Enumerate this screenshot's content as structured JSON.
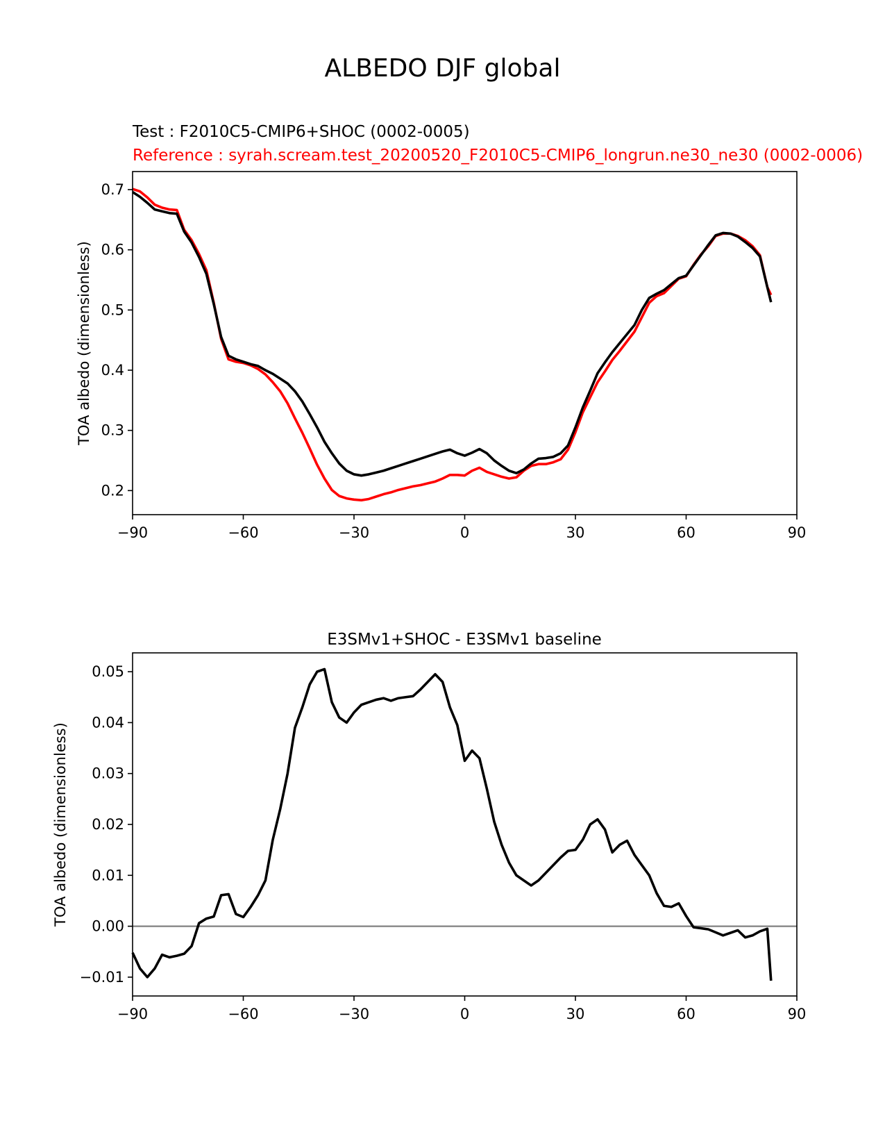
{
  "figure_title": "ALBEDO DJF global",
  "top_panel": {
    "test_label": "Test : F2010C5-CMIP6+SHOC (0002-0005)",
    "reference_label": "Reference : syrah.scream.test_20200520_F2010C5-CMIP6_longrun.ne30_ne30 (0002-0006)"
  },
  "bottom_panel": {
    "title": "E3SMv1+SHOC - E3SMv1 baseline"
  },
  "colors": {
    "test": "#000000",
    "reference": "#ff0000",
    "diff": "#000000",
    "zero_line": "#808080"
  },
  "chart_data": [
    {
      "type": "line",
      "title": "Test : F2010C5-CMIP6+SHOC (0002-0005)",
      "xlabel": "",
      "ylabel": "TOA albedo (dimensionless)",
      "xlim": [
        -90,
        90
      ],
      "ylim": [
        0.16,
        0.73
      ],
      "xticks": [
        -90,
        -60,
        -30,
        0,
        30,
        60,
        90
      ],
      "xtick_labels": [
        "−90",
        "−60",
        "−30",
        "0",
        "30",
        "60",
        "90"
      ],
      "yticks": [
        0.2,
        0.3,
        0.4,
        0.5,
        0.6,
        0.7
      ],
      "ytick_labels": [
        "0.2",
        "0.3",
        "0.4",
        "0.5",
        "0.6",
        "0.7"
      ],
      "grid": false,
      "series": [
        {
          "name": "reference",
          "color": "#ff0000",
          "x": [
            -90,
            -88,
            -86,
            -84,
            -82,
            -80,
            -78,
            -76,
            -74,
            -72,
            -70,
            -68,
            -66,
            -64,
            -62,
            -60,
            -58,
            -56,
            -54,
            -52,
            -50,
            -48,
            -46,
            -44,
            -42,
            -40,
            -38,
            -36,
            -34,
            -32,
            -30,
            -28,
            -26,
            -24,
            -22,
            -20,
            -18,
            -16,
            -14,
            -12,
            -10,
            -8,
            -6,
            -4,
            -2,
            0,
            2,
            4,
            6,
            8,
            10,
            12,
            14,
            16,
            18,
            20,
            22,
            24,
            26,
            28,
            30,
            32,
            34,
            36,
            38,
            40,
            42,
            44,
            46,
            48,
            50,
            52,
            54,
            56,
            58,
            60,
            62,
            64,
            66,
            68,
            70,
            72,
            74,
            76,
            78,
            80,
            82,
            83
          ],
          "values": [
            0.701,
            0.697,
            0.687,
            0.675,
            0.67,
            0.667,
            0.666,
            0.633,
            0.616,
            0.593,
            0.566,
            0.512,
            0.452,
            0.418,
            0.414,
            0.412,
            0.408,
            0.402,
            0.393,
            0.38,
            0.365,
            0.345,
            0.32,
            0.296,
            0.27,
            0.243,
            0.22,
            0.201,
            0.191,
            0.187,
            0.185,
            0.184,
            0.186,
            0.19,
            0.194,
            0.197,
            0.201,
            0.204,
            0.207,
            0.209,
            0.212,
            0.215,
            0.22,
            0.226,
            0.226,
            0.225,
            0.233,
            0.238,
            0.231,
            0.227,
            0.223,
            0.22,
            0.222,
            0.233,
            0.241,
            0.244,
            0.244,
            0.247,
            0.252,
            0.268,
            0.297,
            0.33,
            0.355,
            0.38,
            0.398,
            0.417,
            0.432,
            0.448,
            0.464,
            0.488,
            0.512,
            0.523,
            0.528,
            0.54,
            0.552,
            0.556,
            0.575,
            0.592,
            0.606,
            0.623,
            0.627,
            0.627,
            0.623,
            0.616,
            0.606,
            0.591,
            0.538,
            0.525
          ]
        },
        {
          "name": "test",
          "color": "#000000",
          "x": [
            -90,
            -88,
            -86,
            -84,
            -82,
            -80,
            -78,
            -76,
            -74,
            -72,
            -70,
            -68,
            -66,
            -64,
            -62,
            -60,
            -58,
            -56,
            -54,
            -52,
            -50,
            -48,
            -46,
            -44,
            -42,
            -40,
            -38,
            -36,
            -34,
            -32,
            -30,
            -28,
            -26,
            -24,
            -22,
            -20,
            -18,
            -16,
            -14,
            -12,
            -10,
            -8,
            -6,
            -4,
            -2,
            0,
            2,
            4,
            6,
            8,
            10,
            12,
            14,
            16,
            18,
            20,
            22,
            24,
            26,
            28,
            30,
            32,
            34,
            36,
            38,
            40,
            42,
            44,
            46,
            48,
            50,
            52,
            54,
            56,
            58,
            60,
            62,
            64,
            66,
            68,
            70,
            72,
            74,
            76,
            78,
            80,
            82,
            83
          ],
          "values": [
            0.696,
            0.688,
            0.678,
            0.667,
            0.664,
            0.661,
            0.66,
            0.63,
            0.612,
            0.588,
            0.56,
            0.51,
            0.455,
            0.424,
            0.418,
            0.414,
            0.41,
            0.407,
            0.4,
            0.394,
            0.386,
            0.378,
            0.365,
            0.348,
            0.327,
            0.305,
            0.281,
            0.262,
            0.245,
            0.233,
            0.227,
            0.225,
            0.227,
            0.23,
            0.233,
            0.237,
            0.241,
            0.245,
            0.249,
            0.253,
            0.257,
            0.261,
            0.265,
            0.268,
            0.262,
            0.258,
            0.263,
            0.269,
            0.262,
            0.25,
            0.241,
            0.233,
            0.229,
            0.235,
            0.245,
            0.253,
            0.254,
            0.256,
            0.262,
            0.275,
            0.305,
            0.338,
            0.366,
            0.395,
            0.413,
            0.43,
            0.445,
            0.46,
            0.475,
            0.5,
            0.52,
            0.527,
            0.533,
            0.543,
            0.553,
            0.557,
            0.574,
            0.591,
            0.608,
            0.624,
            0.628,
            0.627,
            0.622,
            0.613,
            0.603,
            0.589,
            0.538,
            0.513
          ]
        }
      ]
    },
    {
      "type": "line",
      "title": "E3SMv1+SHOC - E3SMv1 baseline",
      "xlabel": "",
      "ylabel": "TOA albedo (dimensionless)",
      "xlim": [
        -90,
        90
      ],
      "ylim": [
        -0.0137,
        0.0537
      ],
      "xticks": [
        -90,
        -60,
        -30,
        0,
        30,
        60,
        90
      ],
      "xtick_labels": [
        "−90",
        "−60",
        "−30",
        "0",
        "30",
        "60",
        "90"
      ],
      "yticks": [
        -0.01,
        0.0,
        0.01,
        0.02,
        0.03,
        0.04,
        0.05
      ],
      "ytick_labels": [
        "−0.01",
        "0.00",
        "0.01",
        "0.02",
        "0.03",
        "0.04",
        "0.05"
      ],
      "grid": false,
      "reference_line": 0,
      "series": [
        {
          "name": "difference",
          "color": "#000000",
          "x": [
            -90,
            -88,
            -86,
            -84,
            -82,
            -80,
            -78,
            -76,
            -74,
            -72,
            -70,
            -68,
            -66,
            -64,
            -62,
            -60,
            -58,
            -56,
            -54,
            -52,
            -50,
            -48,
            -46,
            -44,
            -42,
            -40,
            -38,
            -36,
            -34,
            -32,
            -30,
            -28,
            -26,
            -24,
            -22,
            -20,
            -18,
            -16,
            -14,
            -12,
            -10,
            -8,
            -6,
            -4,
            -2,
            0,
            2,
            4,
            6,
            8,
            10,
            12,
            14,
            16,
            18,
            20,
            22,
            24,
            26,
            28,
            30,
            32,
            34,
            36,
            38,
            40,
            42,
            44,
            46,
            48,
            50,
            52,
            54,
            56,
            58,
            60,
            62,
            64,
            66,
            68,
            70,
            72,
            74,
            76,
            78,
            80,
            82,
            83
          ],
          "values": [
            -0.0052,
            -0.0083,
            -0.01,
            -0.0083,
            -0.0056,
            -0.0061,
            -0.0058,
            -0.0054,
            -0.0039,
            0.0006,
            0.0015,
            0.0019,
            0.0061,
            0.0063,
            0.0024,
            0.0018,
            0.0038,
            0.0061,
            0.009,
            0.017,
            0.023,
            0.03,
            0.039,
            0.043,
            0.0475,
            0.05,
            0.0505,
            0.044,
            0.041,
            0.04,
            0.042,
            0.0435,
            0.044,
            0.0445,
            0.0448,
            0.0443,
            0.0448,
            0.045,
            0.0452,
            0.0465,
            0.048,
            0.0495,
            0.048,
            0.043,
            0.0395,
            0.0325,
            0.0345,
            0.033,
            0.027,
            0.0205,
            0.016,
            0.0125,
            0.01,
            0.009,
            0.008,
            0.009,
            0.0105,
            0.012,
            0.0135,
            0.0148,
            0.015,
            0.017,
            0.02,
            0.021,
            0.019,
            0.0145,
            0.016,
            0.0168,
            0.014,
            0.012,
            0.01,
            0.0065,
            0.004,
            0.0038,
            0.0045,
            0.002,
            -0.0002,
            -0.0004,
            -0.0006,
            -0.0012,
            -0.0018,
            -0.0013,
            -0.0008,
            -0.0022,
            -0.0018,
            -0.001,
            -0.0005,
            -0.0107
          ]
        }
      ]
    }
  ]
}
